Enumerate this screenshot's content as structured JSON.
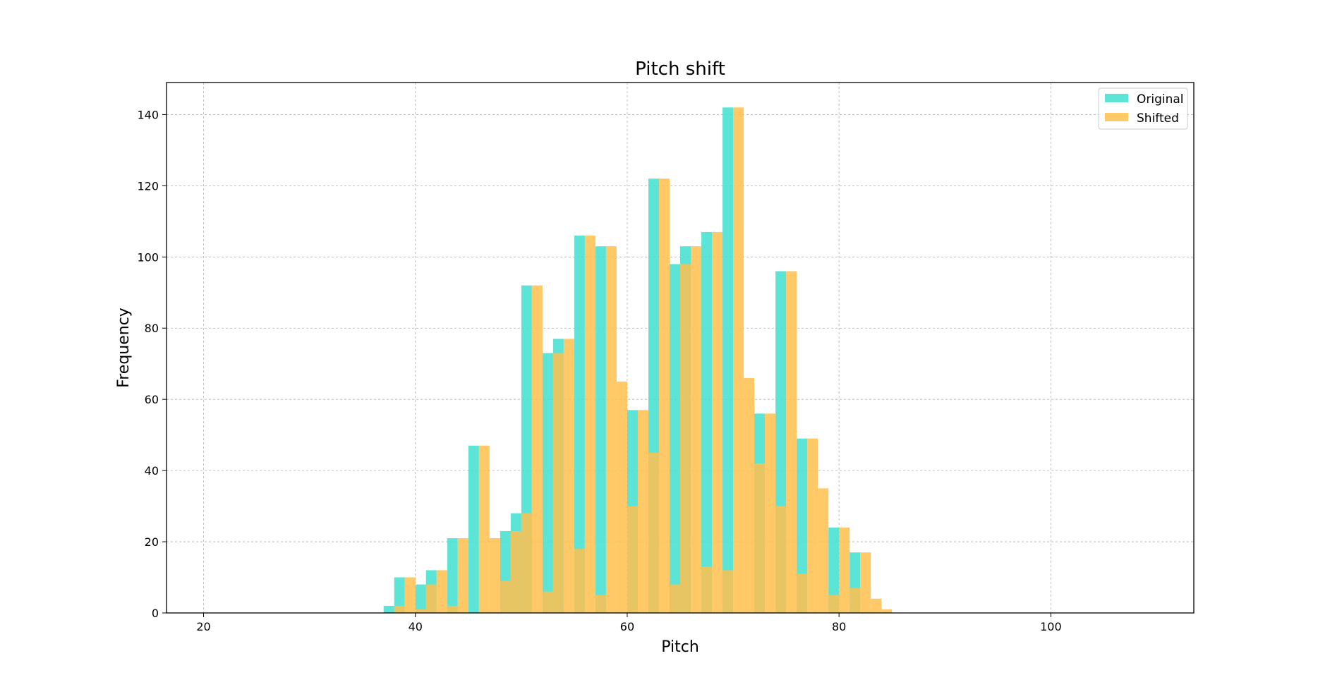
{
  "chart_data": {
    "type": "bar",
    "title": "Pitch shift",
    "xlabel": "Pitch",
    "ylabel": "Frequency",
    "xlim": [
      16.5,
      113.5
    ],
    "ylim": [
      0,
      149
    ],
    "xticks": [
      20,
      40,
      60,
      80,
      100
    ],
    "yticks": [
      0,
      20,
      40,
      60,
      80,
      100,
      120,
      140
    ],
    "grid": true,
    "legend_position": "top-right",
    "bin_width": 1,
    "series": [
      {
        "name": "Original",
        "color": "#40E0D0",
        "bins": [
          {
            "x": 37.5,
            "value": 2
          },
          {
            "x": 38.5,
            "value": 10
          },
          {
            "x": 39.5,
            "value": 0
          },
          {
            "x": 40.5,
            "value": 8
          },
          {
            "x": 41.5,
            "value": 12
          },
          {
            "x": 42.5,
            "value": 0
          },
          {
            "x": 43.5,
            "value": 21
          },
          {
            "x": 44.5,
            "value": 0
          },
          {
            "x": 45.5,
            "value": 47
          },
          {
            "x": 46.5,
            "value": 0
          },
          {
            "x": 47.5,
            "value": 0
          },
          {
            "x": 48.5,
            "value": 23
          },
          {
            "x": 49.5,
            "value": 28
          },
          {
            "x": 50.5,
            "value": 92
          },
          {
            "x": 51.5,
            "value": 0
          },
          {
            "x": 52.5,
            "value": 73
          },
          {
            "x": 53.5,
            "value": 77
          },
          {
            "x": 54.5,
            "value": 0
          },
          {
            "x": 55.5,
            "value": 106
          },
          {
            "x": 56.5,
            "value": 0
          },
          {
            "x": 57.5,
            "value": 103
          },
          {
            "x": 58.5,
            "value": 0
          },
          {
            "x": 59.5,
            "value": 0
          },
          {
            "x": 60.5,
            "value": 57
          },
          {
            "x": 61.5,
            "value": 0
          },
          {
            "x": 62.5,
            "value": 122
          },
          {
            "x": 63.5,
            "value": 0
          },
          {
            "x": 64.5,
            "value": 98
          },
          {
            "x": 65.5,
            "value": 103
          },
          {
            "x": 66.5,
            "value": 0
          },
          {
            "x": 67.5,
            "value": 107
          },
          {
            "x": 68.5,
            "value": 0
          },
          {
            "x": 69.5,
            "value": 142
          },
          {
            "x": 70.5,
            "value": 0
          },
          {
            "x": 71.5,
            "value": 0
          },
          {
            "x": 72.5,
            "value": 56
          },
          {
            "x": 73.5,
            "value": 0
          },
          {
            "x": 74.5,
            "value": 96
          },
          {
            "x": 75.5,
            "value": 0
          },
          {
            "x": 76.5,
            "value": 49
          },
          {
            "x": 77.5,
            "value": 0
          },
          {
            "x": 78.5,
            "value": 0
          },
          {
            "x": 79.5,
            "value": 24
          },
          {
            "x": 80.5,
            "value": 0
          },
          {
            "x": 81.5,
            "value": 17
          },
          {
            "x": 82.5,
            "value": 0
          },
          {
            "x": 83.5,
            "value": 0
          }
        ]
      },
      {
        "name": "Shifted",
        "color": "#FFC04D",
        "bins": [
          {
            "x": 37.5,
            "value": 0
          },
          {
            "x": 38.5,
            "value": 2
          },
          {
            "x": 39.5,
            "value": 10
          },
          {
            "x": 40.5,
            "value": 1
          },
          {
            "x": 41.5,
            "value": 8
          },
          {
            "x": 42.5,
            "value": 12
          },
          {
            "x": 43.5,
            "value": 2
          },
          {
            "x": 44.5,
            "value": 21
          },
          {
            "x": 45.5,
            "value": 0
          },
          {
            "x": 46.5,
            "value": 47
          },
          {
            "x": 47.5,
            "value": 21
          },
          {
            "x": 48.5,
            "value": 9
          },
          {
            "x": 49.5,
            "value": 23
          },
          {
            "x": 50.5,
            "value": 28
          },
          {
            "x": 51.5,
            "value": 92
          },
          {
            "x": 52.5,
            "value": 6
          },
          {
            "x": 53.5,
            "value": 73
          },
          {
            "x": 54.5,
            "value": 77
          },
          {
            "x": 55.5,
            "value": 18
          },
          {
            "x": 56.5,
            "value": 106
          },
          {
            "x": 57.5,
            "value": 5
          },
          {
            "x": 58.5,
            "value": 103
          },
          {
            "x": 59.5,
            "value": 65
          },
          {
            "x": 60.5,
            "value": 30
          },
          {
            "x": 61.5,
            "value": 57
          },
          {
            "x": 62.5,
            "value": 45
          },
          {
            "x": 63.5,
            "value": 122
          },
          {
            "x": 64.5,
            "value": 8
          },
          {
            "x": 65.5,
            "value": 98
          },
          {
            "x": 66.5,
            "value": 103
          },
          {
            "x": 67.5,
            "value": 13
          },
          {
            "x": 68.5,
            "value": 107
          },
          {
            "x": 69.5,
            "value": 12
          },
          {
            "x": 70.5,
            "value": 142
          },
          {
            "x": 71.5,
            "value": 66
          },
          {
            "x": 72.5,
            "value": 42
          },
          {
            "x": 73.5,
            "value": 56
          },
          {
            "x": 74.5,
            "value": 30
          },
          {
            "x": 75.5,
            "value": 96
          },
          {
            "x": 76.5,
            "value": 11
          },
          {
            "x": 77.5,
            "value": 49
          },
          {
            "x": 78.5,
            "value": 35
          },
          {
            "x": 79.5,
            "value": 5
          },
          {
            "x": 80.5,
            "value": 24
          },
          {
            "x": 81.5,
            "value": 7
          },
          {
            "x": 82.5,
            "value": 17
          },
          {
            "x": 83.5,
            "value": 4
          },
          {
            "x": 84.5,
            "value": 1
          }
        ]
      }
    ]
  }
}
